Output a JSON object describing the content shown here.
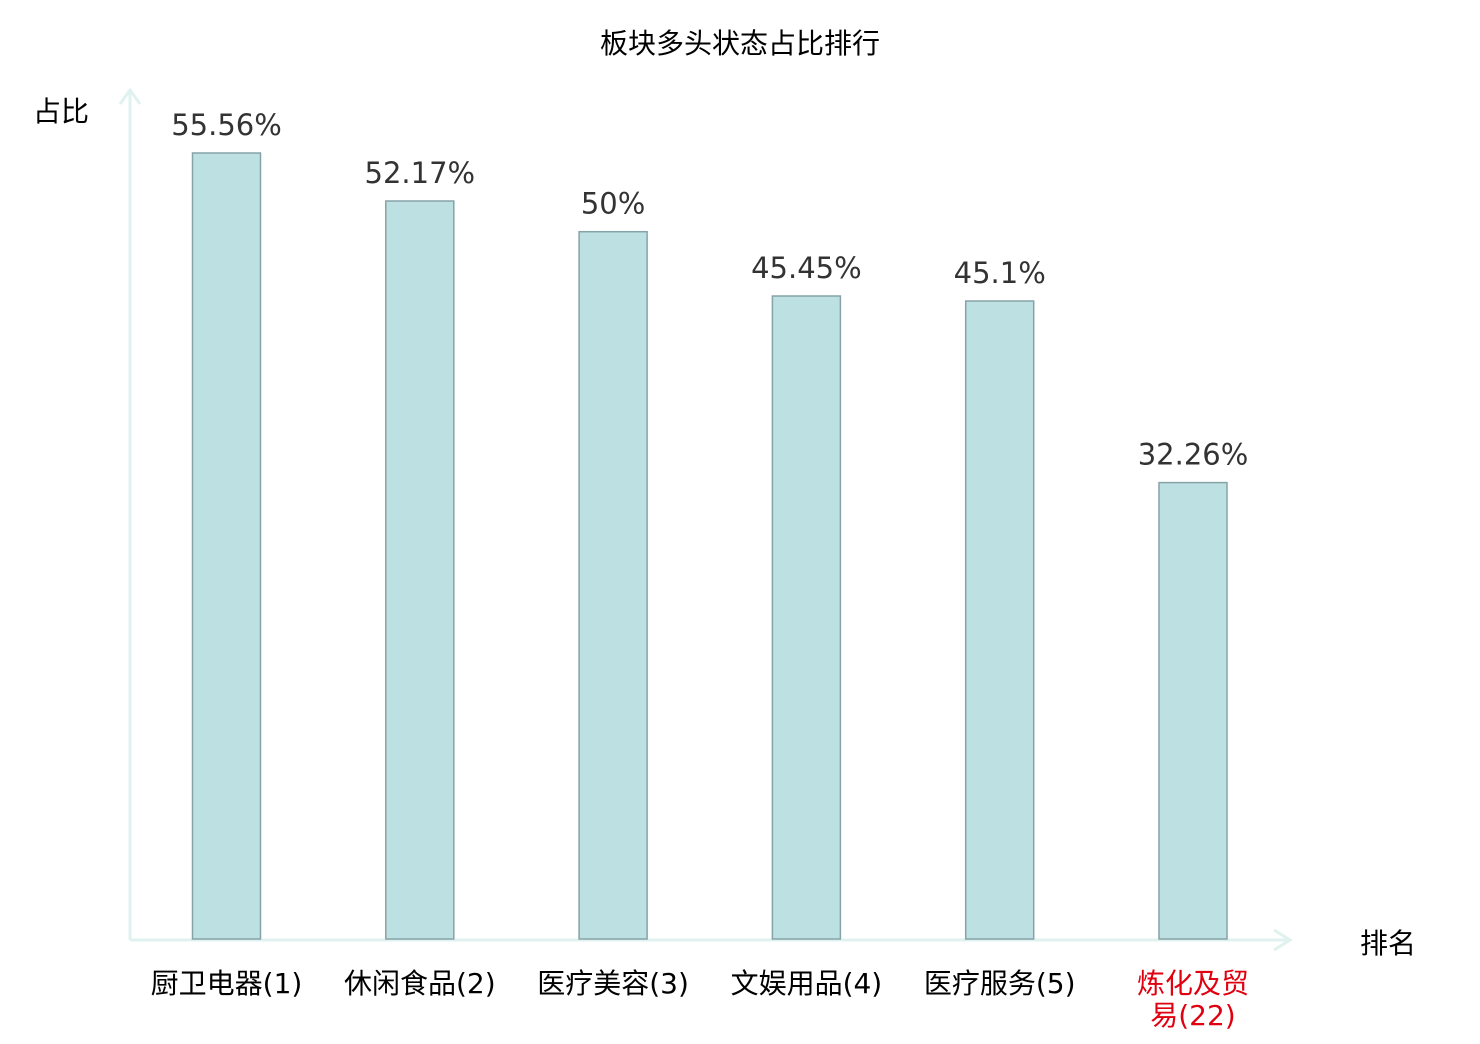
{
  "chart_data": {
    "type": "bar",
    "title": "板块多头状态占比排行",
    "xlabel": "排名",
    "ylabel": "占比",
    "categories": [
      "厨卫电器(1)",
      "休闲食品(2)",
      "医疗美容(3)",
      "文娱用品(4)",
      "医疗服务(5)",
      "炼化及贸易(22)"
    ],
    "category_lines": [
      [
        "厨卫电器(1)"
      ],
      [
        "休闲食品(2)"
      ],
      [
        "医疗美容(3)"
      ],
      [
        "文娱用品(4)"
      ],
      [
        "医疗服务(5)"
      ],
      [
        "炼化及贸",
        "易(22)"
      ]
    ],
    "values": [
      55.56,
      52.17,
      50,
      45.45,
      45.1,
      32.26
    ],
    "value_labels": [
      "55.56%",
      "52.17%",
      "50%",
      "45.45%",
      "45.1%",
      "32.26%"
    ],
    "highlight_index": 5,
    "ylim": [
      0,
      60
    ],
    "grid": false,
    "legend": "none"
  },
  "colors": {
    "bar_fill": "#bde0e3",
    "bar_stroke": "#86a3a7",
    "axis": "#e0f2f0",
    "label_text": "#000000",
    "value_text": "#333333",
    "highlight_text": "#e0000f"
  }
}
